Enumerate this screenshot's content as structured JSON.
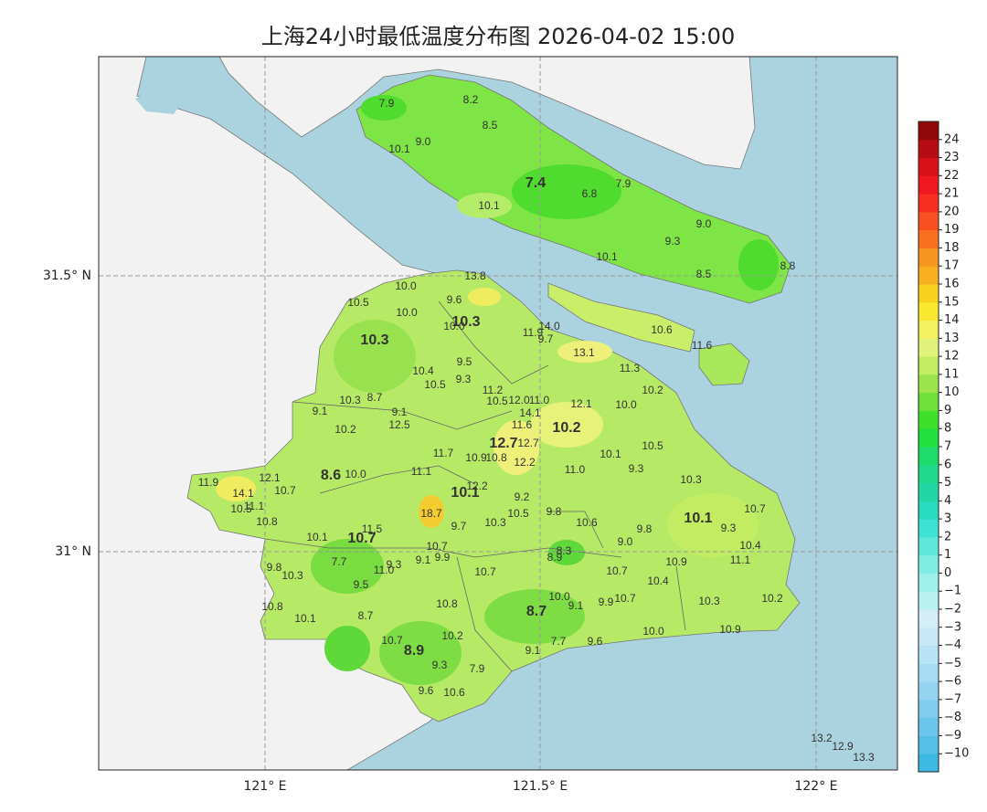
{
  "title": "上海24小时最低温度分布图 2026-04-02 15:00",
  "grid": {
    "x_labels": [
      "121° E",
      "121.5° E",
      "122° E"
    ],
    "y_labels": [
      "31.5° N",
      "31° N"
    ]
  },
  "colorbar": {
    "lim": [
      -11,
      25
    ],
    "ticks": [
      {
        "value": -10,
        "label": "−10"
      },
      {
        "value": -9,
        "label": "−9"
      },
      {
        "value": -8,
        "label": "−8"
      },
      {
        "value": -7,
        "label": "−7"
      },
      {
        "value": -6,
        "label": "−6"
      },
      {
        "value": -5,
        "label": "−5"
      },
      {
        "value": -4,
        "label": "−4"
      },
      {
        "value": -3,
        "label": "−3"
      },
      {
        "value": -2,
        "label": "−2"
      },
      {
        "value": -1,
        "label": "−1"
      },
      0,
      1,
      2,
      3,
      4,
      5,
      6,
      7,
      8,
      9,
      10,
      11,
      12,
      13,
      14,
      15,
      16,
      17,
      18,
      19,
      20,
      21,
      22,
      23,
      24
    ],
    "colors": [
      "#3db8e3",
      "#55bfe6",
      "#6ac6ea",
      "#7fcdee",
      "#94d4f1",
      "#a6dbf4",
      "#b8e2f6",
      "#c8e8f8",
      "#d4eef8",
      "#b8f2f0",
      "#9ef0ea",
      "#7fede4",
      "#5ee8dc",
      "#3de2d2",
      "#28dcc0",
      "#22d6a6",
      "#20d98c",
      "#1edc6c",
      "#22e040",
      "#3ee02c",
      "#6ee03a",
      "#9ce44e",
      "#c2ec62",
      "#e0f27a",
      "#f4f060",
      "#f8e830",
      "#f8d020",
      "#f8b020",
      "#f89420",
      "#f87020",
      "#f85020",
      "#f83020",
      "#f01820",
      "#d81018",
      "#b80c14",
      "#900808"
    ]
  },
  "stations": [
    {
      "label": "7.9"
    },
    {
      "label": "8.2"
    },
    {
      "label": "8.5"
    },
    {
      "label": "10.1"
    },
    {
      "label": "9.0"
    },
    {
      "label": "7.4",
      "bold": true
    },
    {
      "label": "6.8"
    },
    {
      "label": "7.9"
    },
    {
      "label": "10.1"
    },
    {
      "label": "9.0"
    },
    {
      "label": "9.3"
    },
    {
      "label": "10.1"
    },
    {
      "label": "8.5"
    },
    {
      "label": "8.8"
    },
    {
      "label": "13.8"
    },
    {
      "label": "10.0"
    },
    {
      "label": "9.6"
    },
    {
      "label": "10.5"
    },
    {
      "label": "10.0"
    },
    {
      "label": "10.3",
      "bold": true
    },
    {
      "label": "10.0"
    },
    {
      "label": "14.0"
    },
    {
      "label": "11.9"
    },
    {
      "label": "9.7"
    },
    {
      "label": "10.3",
      "bold": true
    },
    {
      "label": "13.1"
    },
    {
      "label": "9.5"
    },
    {
      "label": "11.3"
    },
    {
      "label": "10.6"
    },
    {
      "label": "11.6"
    },
    {
      "label": "10.4"
    },
    {
      "label": "10.5"
    },
    {
      "label": "9.3"
    },
    {
      "label": "11.2"
    },
    {
      "label": "10.2"
    },
    {
      "label": "8.7"
    },
    {
      "label": "10.3"
    },
    {
      "label": "10.5"
    },
    {
      "label": "12.0"
    },
    {
      "label": "11.0"
    },
    {
      "label": "12.1"
    },
    {
      "label": "10.0"
    },
    {
      "label": "9.1"
    },
    {
      "label": "9.1"
    },
    {
      "label": "14.1"
    },
    {
      "label": "11.6"
    },
    {
      "label": "12.5"
    },
    {
      "label": "10.2",
      "bold": true
    },
    {
      "label": "10.2"
    },
    {
      "label": "12.7",
      "bold": true
    },
    {
      "label": "12.7"
    },
    {
      "label": "10.5"
    },
    {
      "label": "11.7"
    },
    {
      "label": "10.9"
    },
    {
      "label": "10.8"
    },
    {
      "label": "10.1"
    },
    {
      "label": "12.2"
    },
    {
      "label": "9.3"
    },
    {
      "label": "11.0"
    },
    {
      "label": "8.6",
      "bold": true
    },
    {
      "label": "10.0"
    },
    {
      "label": "11.1"
    },
    {
      "label": "11.9"
    },
    {
      "label": "12.1"
    },
    {
      "label": "10.3"
    },
    {
      "label": "14.1"
    },
    {
      "label": "10.7"
    },
    {
      "label": "12.2"
    },
    {
      "label": "10.1",
      "bold": true
    },
    {
      "label": "9.2"
    },
    {
      "label": "10.5"
    },
    {
      "label": "11.1"
    },
    {
      "label": "10.7"
    },
    {
      "label": "18.7"
    },
    {
      "label": "9.8"
    },
    {
      "label": "10.5"
    },
    {
      "label": "10.3"
    },
    {
      "label": "10.6"
    },
    {
      "label": "10.1",
      "bold": true
    },
    {
      "label": "10.8"
    },
    {
      "label": "9.7"
    },
    {
      "label": "11.5"
    },
    {
      "label": "9.8"
    },
    {
      "label": "9.3"
    },
    {
      "label": "10.1"
    },
    {
      "label": "10.7",
      "bold": true
    },
    {
      "label": "9.0"
    },
    {
      "label": "10.7"
    },
    {
      "label": "10.4"
    },
    {
      "label": "9.9"
    },
    {
      "label": "9.1"
    },
    {
      "label": "8.3"
    },
    {
      "label": "8.9"
    },
    {
      "label": "7.7"
    },
    {
      "label": "9.3"
    },
    {
      "label": "10.9"
    },
    {
      "label": "11.1"
    },
    {
      "label": "11.0"
    },
    {
      "label": "9.8"
    },
    {
      "label": "10.3"
    },
    {
      "label": "10.7"
    },
    {
      "label": "10.7"
    },
    {
      "label": "10.4"
    },
    {
      "label": "9.5"
    },
    {
      "label": "10.0"
    },
    {
      "label": "9.1"
    },
    {
      "label": "9.9"
    },
    {
      "label": "10.7"
    },
    {
      "label": "10.3"
    },
    {
      "label": "10.2"
    },
    {
      "label": "10.8"
    },
    {
      "label": "10.8"
    },
    {
      "label": "8.7",
      "bold": true
    },
    {
      "label": "8.7"
    },
    {
      "label": "10.1"
    },
    {
      "label": "10.0"
    },
    {
      "label": "10.9"
    },
    {
      "label": "10.2"
    },
    {
      "label": "7.7"
    },
    {
      "label": "9.6"
    },
    {
      "label": "8.9",
      "bold": true
    },
    {
      "label": "10.7"
    },
    {
      "label": "9.1"
    },
    {
      "label": "9.3"
    },
    {
      "label": "7.9"
    },
    {
      "label": "9.6"
    },
    {
      "label": "10.6"
    },
    {
      "label": "13.2"
    },
    {
      "label": "12.9"
    },
    {
      "label": "13.3"
    }
  ]
}
